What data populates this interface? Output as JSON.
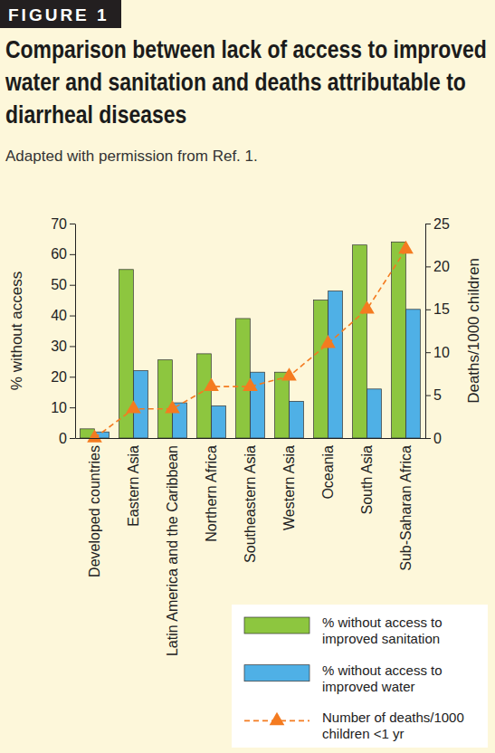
{
  "label": "FIGURE 1",
  "chart_data": {
    "type": "bar",
    "title": "Comparison between lack of access to improved water and sanitation and deaths attributable to diarrheal diseases",
    "subtitle": "Adapted with permission from Ref. 1.",
    "y_label": "% without access",
    "y2_label": "Deaths/1000 children",
    "categories": [
      "Developed countries",
      "Eastern Asia",
      "Latin America and the Caribbean",
      "Northern Africa",
      "Southeastern Asia",
      "Western Asia",
      "Oceania",
      "South Asia",
      "Sub-Saharan Africa"
    ],
    "series": [
      {
        "name": "% without access to improved sanitation",
        "type": "bar",
        "color": "#8dc63f",
        "values": [
          3,
          55,
          25.5,
          27.5,
          39,
          21.5,
          45,
          63,
          64
        ]
      },
      {
        "name": "% without access to improved water",
        "type": "bar",
        "color": "#4fb0e6",
        "values": [
          2,
          22,
          11.5,
          10.5,
          21.5,
          12,
          48,
          16,
          42
        ]
      },
      {
        "name": "Number of deaths/1000 children <1 yr",
        "type": "line",
        "axis": "y2",
        "color": "#f47b20",
        "line_style": "dashed",
        "marker": "triangle",
        "values": [
          0,
          3.4,
          3.4,
          6,
          6,
          7.2,
          11,
          15,
          22
        ]
      }
    ],
    "ylim": [
      0,
      70
    ],
    "yticks": [
      0,
      10,
      20,
      30,
      40,
      50,
      60,
      70
    ],
    "y2lim": [
      0,
      25
    ],
    "y2ticks": [
      0,
      5,
      10,
      15,
      20,
      25
    ],
    "grid": false,
    "legend": "bottom-right"
  }
}
